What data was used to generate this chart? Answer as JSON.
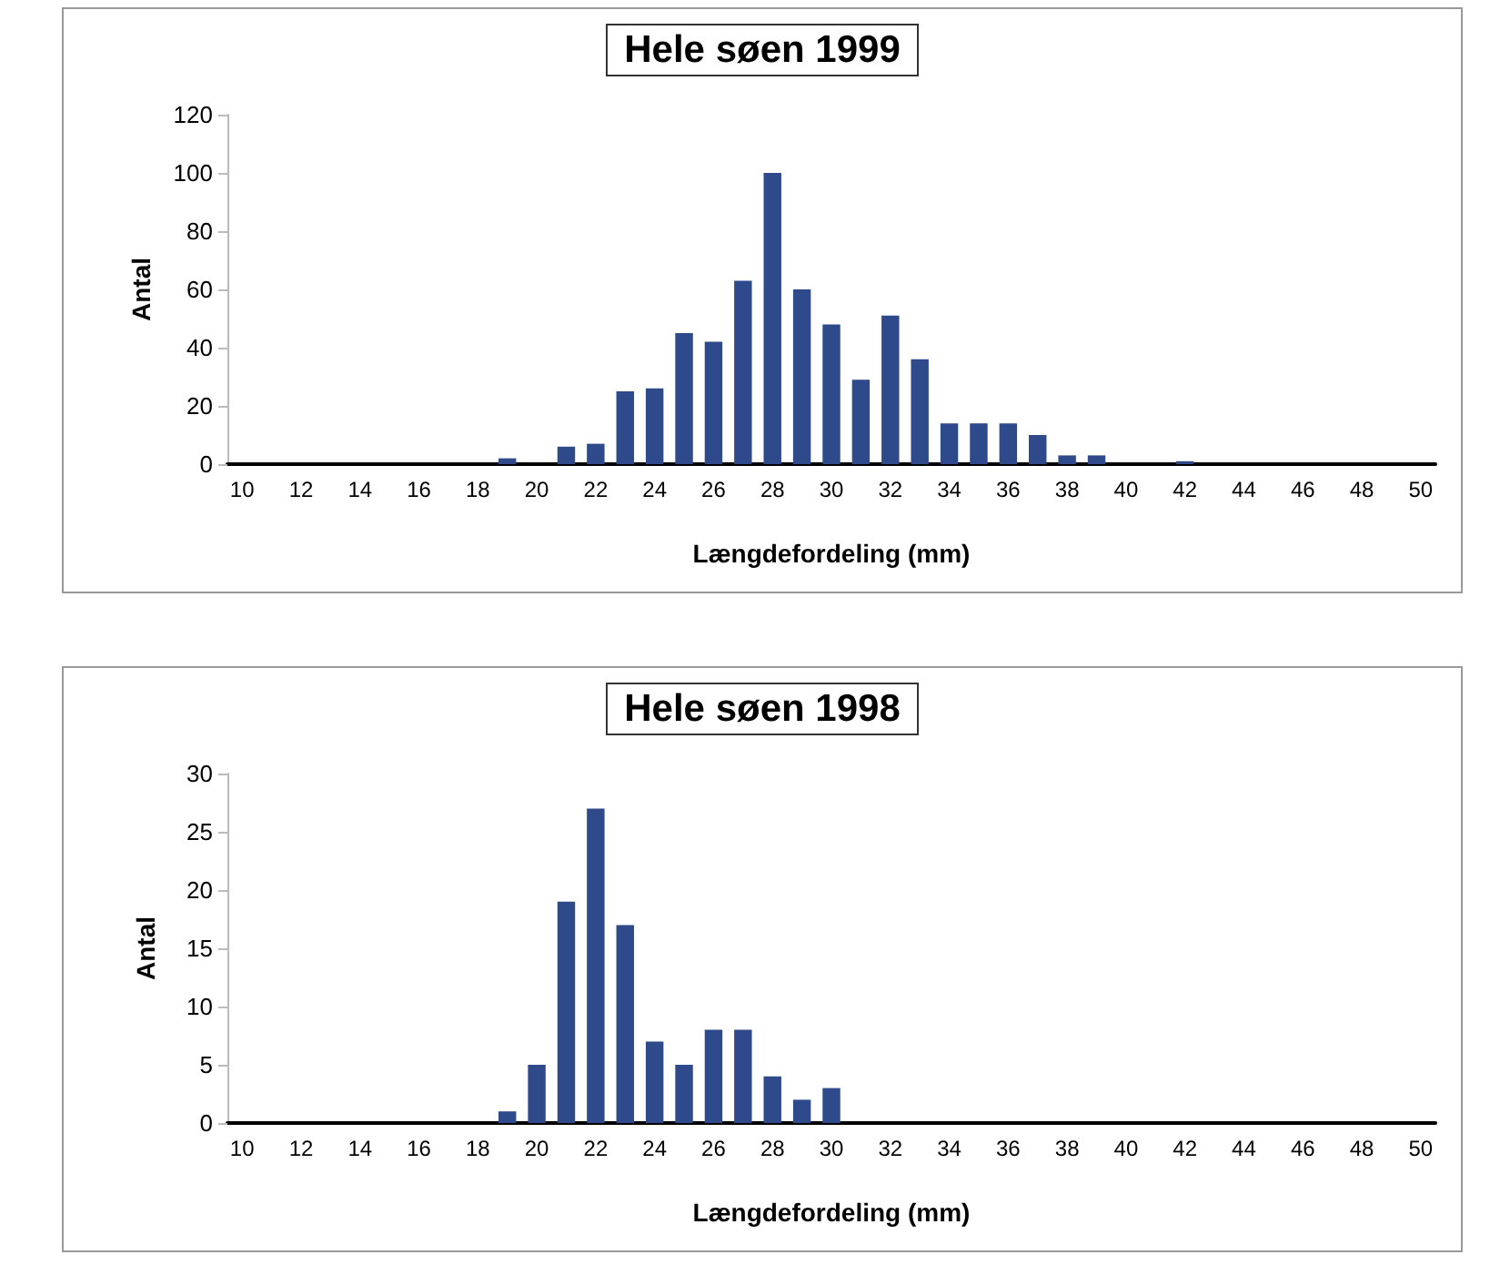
{
  "chart_data": [
    {
      "type": "bar",
      "title": "Hele søen 1999",
      "xlabel": "Længdefordeling (mm)",
      "ylabel": "Antal",
      "categories": [
        "10",
        null,
        "12",
        null,
        "14",
        null,
        "16",
        null,
        "18",
        null,
        "20",
        null,
        "22",
        null,
        "24",
        null,
        "26",
        null,
        "28",
        null,
        "30",
        null,
        "32",
        null,
        "34",
        null,
        "36",
        null,
        "38",
        null,
        "40",
        null,
        "42",
        null,
        "44",
        null,
        "46",
        null,
        "48",
        null,
        "50"
      ],
      "values": [
        0,
        0,
        0,
        0,
        0,
        0,
        0,
        0,
        0,
        2,
        0,
        6,
        7,
        25,
        26,
        45,
        42,
        63,
        100,
        60,
        48,
        29,
        51,
        36,
        14,
        14,
        14,
        10,
        3,
        3,
        0,
        0,
        1,
        0,
        0,
        0,
        0,
        0,
        0,
        0,
        0
      ],
      "color": "#2e4a8a",
      "ylim": [
        0,
        120
      ],
      "yticks": [
        0,
        20,
        40,
        60,
        80,
        100,
        120
      ],
      "grid": false
    },
    {
      "type": "bar",
      "title": "Hele søen 1998",
      "xlabel": "Længdefordeling (mm)",
      "ylabel": "Antal",
      "categories": [
        "10",
        null,
        "12",
        null,
        "14",
        null,
        "16",
        null,
        "18",
        null,
        "20",
        null,
        "22",
        null,
        "24",
        null,
        "26",
        null,
        "28",
        null,
        "30",
        null,
        "32",
        null,
        "34",
        null,
        "36",
        null,
        "38",
        null,
        "40",
        null,
        "42",
        null,
        "44",
        null,
        "46",
        null,
        "48",
        null,
        "50"
      ],
      "values": [
        0,
        0,
        0,
        0,
        0,
        0,
        0,
        0,
        0,
        1,
        5,
        19,
        27,
        17,
        7,
        5,
        8,
        8,
        4,
        2,
        3,
        0,
        0,
        0,
        0,
        0,
        0,
        0,
        0,
        0,
        0,
        0,
        0,
        0,
        0,
        0,
        0,
        0,
        0,
        0,
        0
      ],
      "color": "#2e4a8a",
      "ylim": [
        0,
        30
      ],
      "yticks": [
        0,
        5,
        10,
        15,
        20,
        25,
        30
      ],
      "grid": false
    }
  ]
}
